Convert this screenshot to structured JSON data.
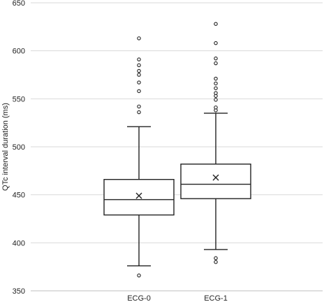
{
  "chart_data": {
    "type": "boxplot",
    "title": "",
    "xlabel": "",
    "ylabel": "QTc interval duration (ms)",
    "ylim": [
      350,
      650
    ],
    "yticks": [
      350,
      400,
      450,
      500,
      550,
      600,
      650
    ],
    "grid": true,
    "categories": [
      "ECG-0",
      "ECG-1"
    ],
    "boxes": [
      {
        "name": "ECG-0",
        "whisker_low": 376,
        "q1": 429,
        "median": 445,
        "q3": 466,
        "whisker_high": 521,
        "mean": 449,
        "outliers": [
          366,
          536,
          542,
          558,
          567,
          575,
          579,
          585,
          591,
          613
        ]
      },
      {
        "name": "ECG-1",
        "whisker_low": 393,
        "q1": 446,
        "median": 461,
        "q3": 482,
        "whisker_high": 535,
        "mean": 468,
        "outliers": [
          380,
          384,
          538,
          541,
          549,
          553,
          556,
          561,
          566,
          571,
          587,
          592,
          608,
          628
        ]
      }
    ],
    "colors": {
      "box_stroke": "#222222",
      "box_fill": "#ffffff",
      "grid": "#d9d9d9",
      "axis": "#bfbfbf"
    },
    "markers": {
      "mean": "x",
      "outlier": "circle"
    }
  }
}
